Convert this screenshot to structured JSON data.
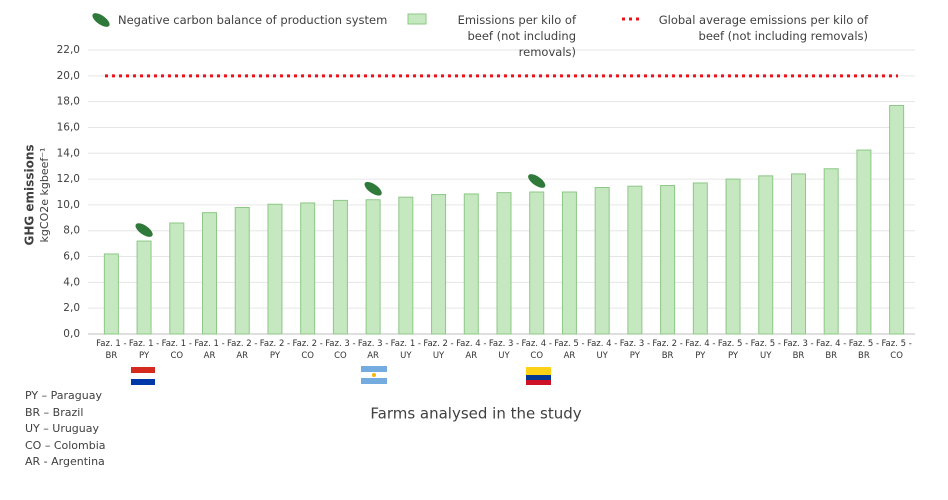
{
  "chart_data": {
    "type": "bar",
    "y_axis_title": "GHG emissions",
    "y_axis_unit": "kgCO2e kgbeef⁻¹",
    "x_axis_title": "Farms analysed in the study",
    "categories": [
      "Faz. 1 - BR",
      "Faz. 1 - PY",
      "Faz. 1 - CO",
      "Faz. 1 - AR",
      "Faz. 2 - AR",
      "Faz. 2 - PY",
      "Faz. 2 - CO",
      "Faz. 3 - CO",
      "Faz. 3 - AR",
      "Faz. 1 - UY",
      "Faz. 2 - UY",
      "Faz. 4 - AR",
      "Faz. 3 - UY",
      "Faz. 4 - CO",
      "Faz. 5 - AR",
      "Faz. 4 - UY",
      "Faz. 3 - PY",
      "Faz. 2 - BR",
      "Faz. 4 - PY",
      "Faz. 5 - PY",
      "Faz. 5 - UY",
      "Faz. 3 - BR",
      "Faz. 4 - BR",
      "Faz. 5 - BR",
      "Faz. 5 - CO"
    ],
    "series": [
      {
        "name": "Emissions per kilo of beef (not including removals)",
        "color": "#c6e8c0",
        "edge": "#8cc886",
        "values": [
          6.2,
          7.2,
          8.6,
          9.4,
          9.8,
          10.05,
          10.15,
          10.35,
          10.4,
          10.6,
          10.8,
          10.85,
          10.95,
          11.0,
          11.0,
          11.35,
          11.45,
          11.5,
          11.7,
          12.0,
          12.25,
          12.4,
          12.8,
          14.25,
          17.7
        ]
      }
    ],
    "reference_line": {
      "name": "Global average emissions per kilo of beef (not including removals)",
      "value": 20,
      "color": "#e8141c"
    },
    "markers": {
      "name": "Negative carbon balance of production system",
      "color": "#2f7a3a",
      "categories": [
        "Faz. 1 - PY",
        "Faz. 3 - AR",
        "Faz. 4 - CO"
      ]
    },
    "ylim": [
      0,
      22
    ],
    "yticks": [
      {
        "value": 0,
        "label": "0,0"
      },
      {
        "value": 2,
        "label": "2,0"
      },
      {
        "value": 4,
        "label": "4,0"
      },
      {
        "value": 6,
        "label": "6,0"
      },
      {
        "value": 8,
        "label": "8,0"
      },
      {
        "value": 10,
        "label": "10,0"
      },
      {
        "value": 12,
        "label": "12,0"
      },
      {
        "value": 14,
        "label": "14,0"
      },
      {
        "value": 16,
        "label": "16,0"
      },
      {
        "value": 18,
        "label": "18,0"
      },
      {
        "value": 20,
        "label": "20,0"
      },
      {
        "value": 22,
        "label": "22,0"
      }
    ],
    "grid": true,
    "country_key": [
      "PY – Paraguay",
      "BR – Brazil",
      "UY – Uruguay",
      "CO – Colombia",
      "AR - Argentina"
    ]
  }
}
